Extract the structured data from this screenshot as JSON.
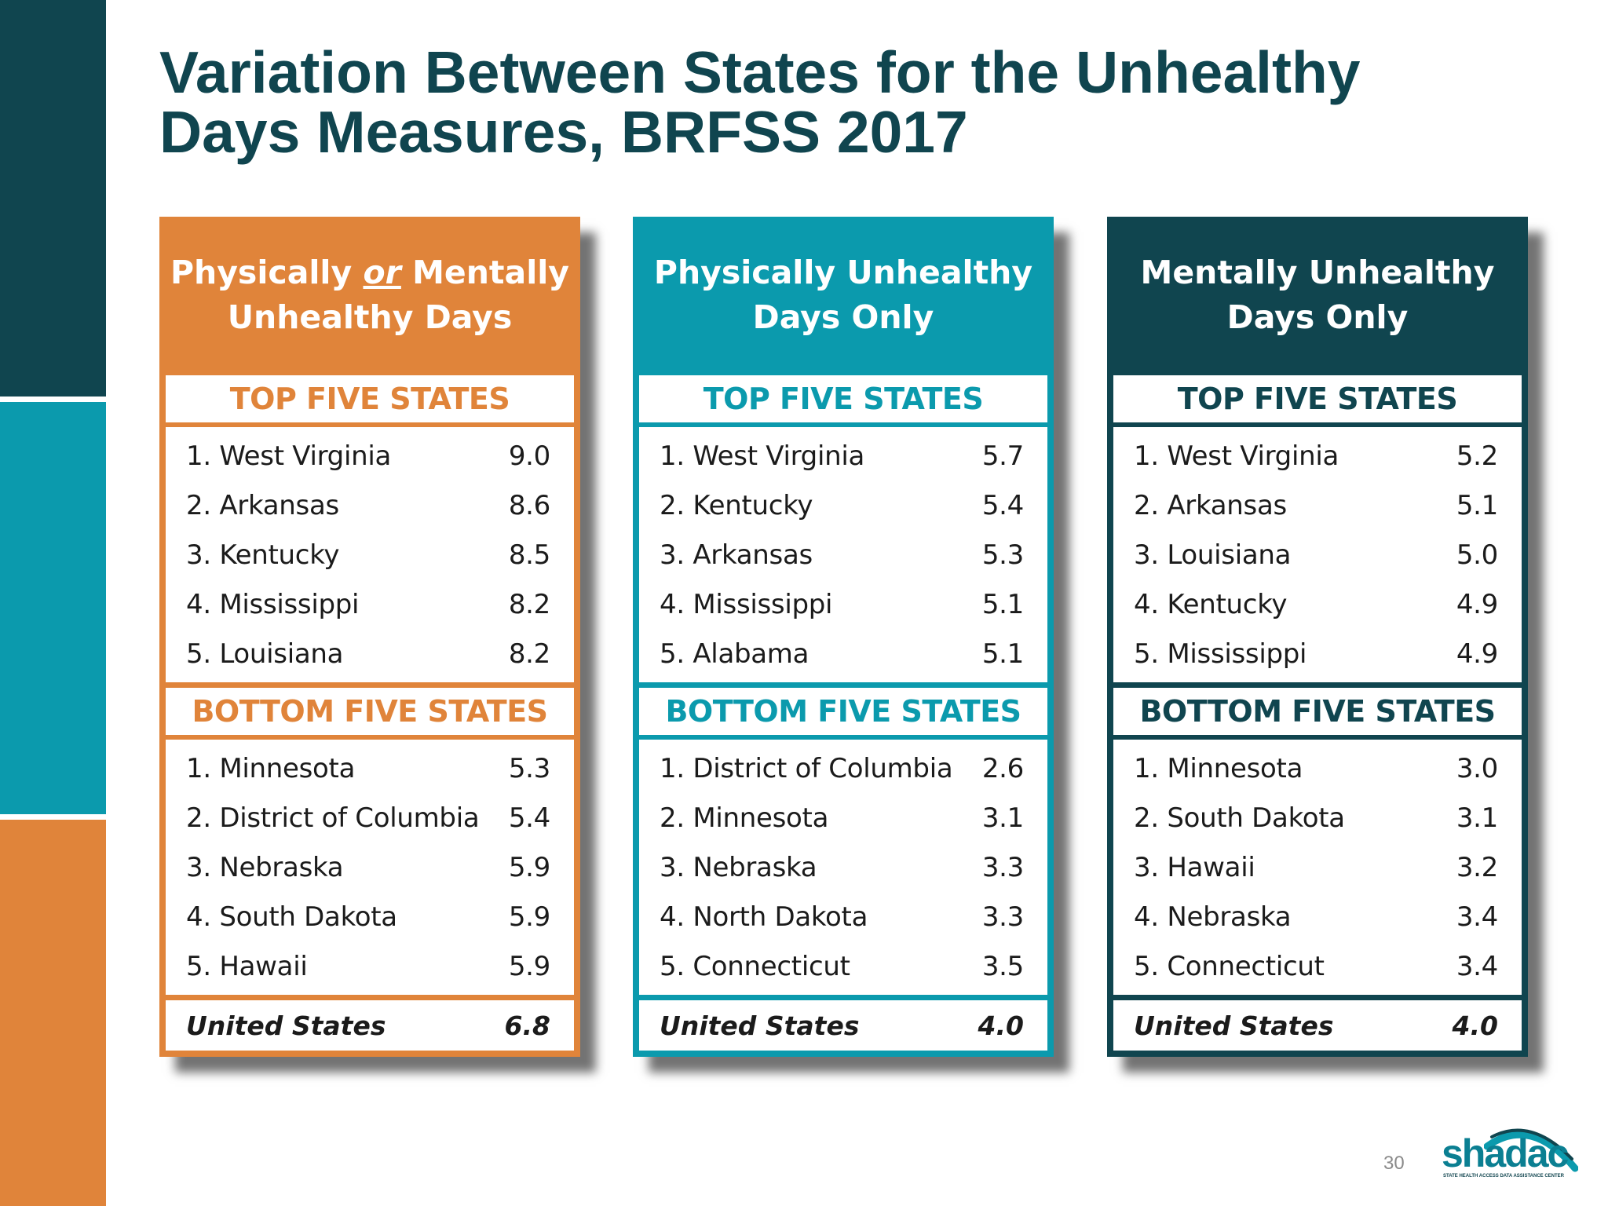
{
  "slide": {
    "title_line1": "Variation Between States for the Unhealthy",
    "title_line2": "Days Measures, BRFSS 2017",
    "page_number": "30",
    "logo_text": "shadac",
    "logo_tagline": "STATE HEALTH ACCESS DATA ASSISTANCE CENTER"
  },
  "colors": {
    "dark_teal": "#10454f",
    "teal": "#0b9aad",
    "orange": "#e0843a"
  },
  "panels": [
    {
      "header_part1": "Physically ",
      "header_em": "or",
      "header_part2": " Mentally",
      "header_line2": "Unhealthy Days",
      "top_label": "TOP FIVE STATES",
      "top": [
        {
          "state": "1. West Virginia",
          "value": "9.0"
        },
        {
          "state": "2. Arkansas",
          "value": "8.6"
        },
        {
          "state": "3. Kentucky",
          "value": "8.5"
        },
        {
          "state": "4. Mississippi",
          "value": "8.2"
        },
        {
          "state": "5. Louisiana",
          "value": "8.2"
        }
      ],
      "bottom_label": "BOTTOM FIVE STATES",
      "bottom": [
        {
          "state": "1. Minnesota",
          "value": "5.3"
        },
        {
          "state": "2. District of Columbia",
          "value": "5.4"
        },
        {
          "state": "3. Nebraska",
          "value": "5.9"
        },
        {
          "state": "4. South Dakota",
          "value": "5.9"
        },
        {
          "state": "5. Hawaii",
          "value": "5.9"
        }
      ],
      "us_label": "United States",
      "us_value": "6.8"
    },
    {
      "header_line1": "Physically Unhealthy",
      "header_line2": "Days Only",
      "top_label": "TOP FIVE STATES",
      "top": [
        {
          "state": "1. West Virginia",
          "value": "5.7"
        },
        {
          "state": "2. Kentucky",
          "value": "5.4"
        },
        {
          "state": "3. Arkansas",
          "value": "5.3"
        },
        {
          "state": "4. Mississippi",
          "value": "5.1"
        },
        {
          "state": "5. Alabama",
          "value": "5.1"
        }
      ],
      "bottom_label": "BOTTOM FIVE STATES",
      "bottom": [
        {
          "state": "1. District of Columbia",
          "value": "2.6"
        },
        {
          "state": "2.  Minnesota",
          "value": "3.1"
        },
        {
          "state": "3. Nebraska",
          "value": "3.3"
        },
        {
          "state": "4. North Dakota",
          "value": "3.3"
        },
        {
          "state": "5. Connecticut",
          "value": "3.5"
        }
      ],
      "us_label": "United States",
      "us_value": "4.0"
    },
    {
      "header_line1": "Mentally Unhealthy",
      "header_line2": "Days Only",
      "top_label": "TOP FIVE STATES",
      "top": [
        {
          "state": "1. West Virginia",
          "value": "5.2"
        },
        {
          "state": "2. Arkansas",
          "value": "5.1"
        },
        {
          "state": "3. Louisiana",
          "value": "5.0"
        },
        {
          "state": "4. Kentucky",
          "value": "4.9"
        },
        {
          "state": "5. Mississippi",
          "value": "4.9"
        }
      ],
      "bottom_label": "BOTTOM FIVE STATES",
      "bottom": [
        {
          "state": "1. Minnesota",
          "value": "3.0"
        },
        {
          "state": "2. South Dakota",
          "value": "3.1"
        },
        {
          "state": "3. Hawaii",
          "value": "3.2"
        },
        {
          "state": "4. Nebraska",
          "value": "3.4"
        },
        {
          "state": "5. Connecticut",
          "value": "3.4"
        }
      ],
      "us_label": "United States",
      "us_value": "4.0"
    }
  ]
}
